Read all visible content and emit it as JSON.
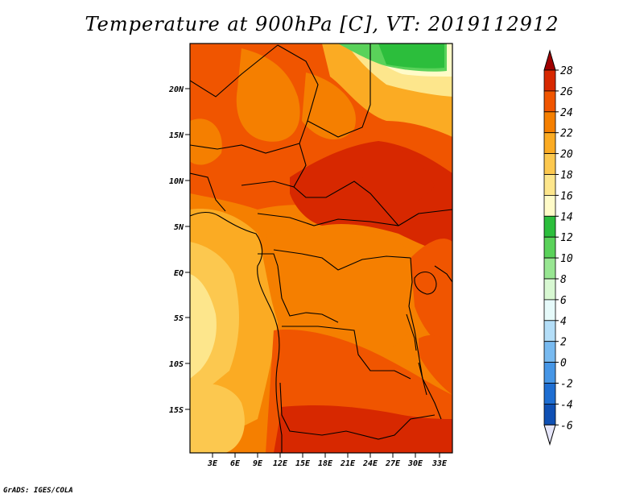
{
  "title": "Temperature at 900hPa [C], VT: 2019112912",
  "credit": "GrADS: IGES/COLA",
  "map": {
    "lat_ticks": [
      "20N",
      "15N",
      "10N",
      "5N",
      "EQ",
      "5S",
      "10S",
      "15S"
    ],
    "lon_ticks": [
      "3E",
      "6E",
      "9E",
      "12E",
      "15E",
      "18E",
      "21E",
      "24E",
      "27E",
      "30E",
      "33E"
    ]
  },
  "colorbar": {
    "levels": [
      "28",
      "26",
      "24",
      "22",
      "20",
      "18",
      "16",
      "14",
      "12",
      "10",
      "8",
      "6",
      "4",
      "2",
      "0",
      "-2",
      "-4",
      "-6"
    ],
    "colors": [
      "#a00000",
      "#d72800",
      "#f05500",
      "#f57f00",
      "#fbab23",
      "#fcc84f",
      "#fde68c",
      "#fffbc8",
      "#2cbe3c",
      "#5ad25a",
      "#98e692",
      "#d8f8d2",
      "#e6fafa",
      "#b4def8",
      "#78baf0",
      "#4696e6",
      "#1e6ed2",
      "#0f50b4",
      "#001478",
      "#e6e6fa"
    ]
  }
}
